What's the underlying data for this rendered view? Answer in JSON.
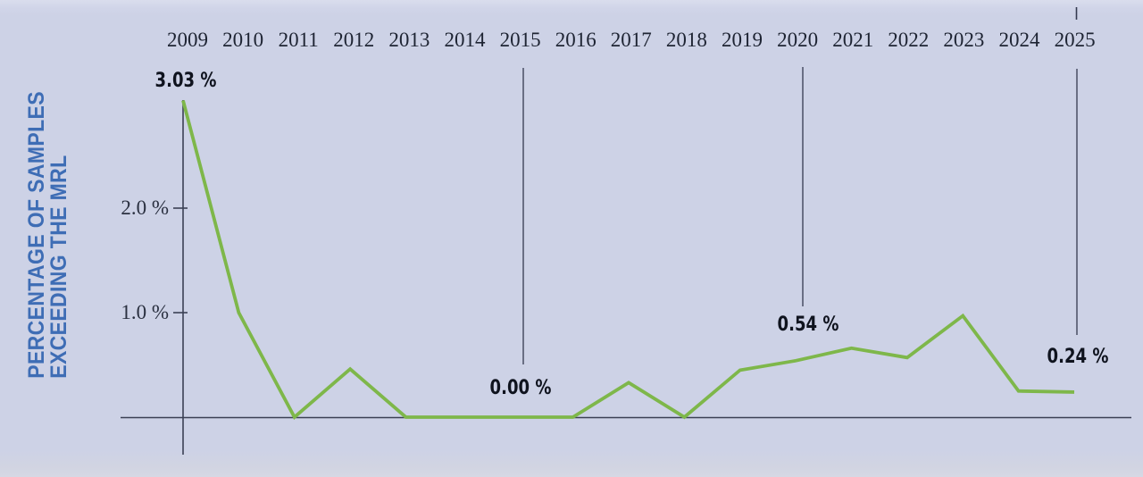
{
  "chart_data": {
    "type": "line",
    "title": "",
    "xlabel": "",
    "ylabel": "PERCENTAGE OF SAMPLES EXCEEDING THE MRL",
    "ylabel_lines": [
      "PERCENTAGE OF SAMPLES",
      "EXCEEDING THE MRL"
    ],
    "x": [
      2009,
      2010,
      2011,
      2012,
      2013,
      2014,
      2015,
      2016,
      2017,
      2018,
      2019,
      2020,
      2021,
      2022,
      2023,
      2024,
      2025
    ],
    "series": [
      {
        "name": "Percentage of samples exceeding the MRL",
        "values": [
          3.03,
          1.0,
          0.0,
          0.46,
          0.0,
          0.0,
          0.0,
          0.0,
          0.33,
          0.0,
          0.45,
          0.54,
          0.66,
          0.57,
          0.97,
          0.25,
          0.24
        ]
      }
    ],
    "yticks": [
      {
        "value": 2.0,
        "label": "2.0 %"
      },
      {
        "value": 1.0,
        "label": "1.0 %"
      }
    ],
    "annotations": [
      {
        "year": 2009,
        "value": 3.03,
        "label": "3.03 %",
        "ref_line": false
      },
      {
        "year": 2015,
        "value": 0.0,
        "label": "0.00 %",
        "ref_line": true
      },
      {
        "year": 2020,
        "value": 0.54,
        "label": "0.54 %",
        "ref_line": true
      },
      {
        "year": 2025,
        "value": 0.24,
        "label": "0.24 %",
        "ref_line": true
      }
    ],
    "ylim": [
      0,
      3.4
    ],
    "grid": false,
    "legend_position": "none",
    "colors": {
      "line": "#7eb74a",
      "axis": "#3b4054",
      "ref_line": "#343a50",
      "ylabel_text": "#3e6db5",
      "year_text": "#1e2433",
      "tick_text": "#2a3040",
      "annotation_text": "#0f131e",
      "background": "#cdd2e6"
    }
  }
}
